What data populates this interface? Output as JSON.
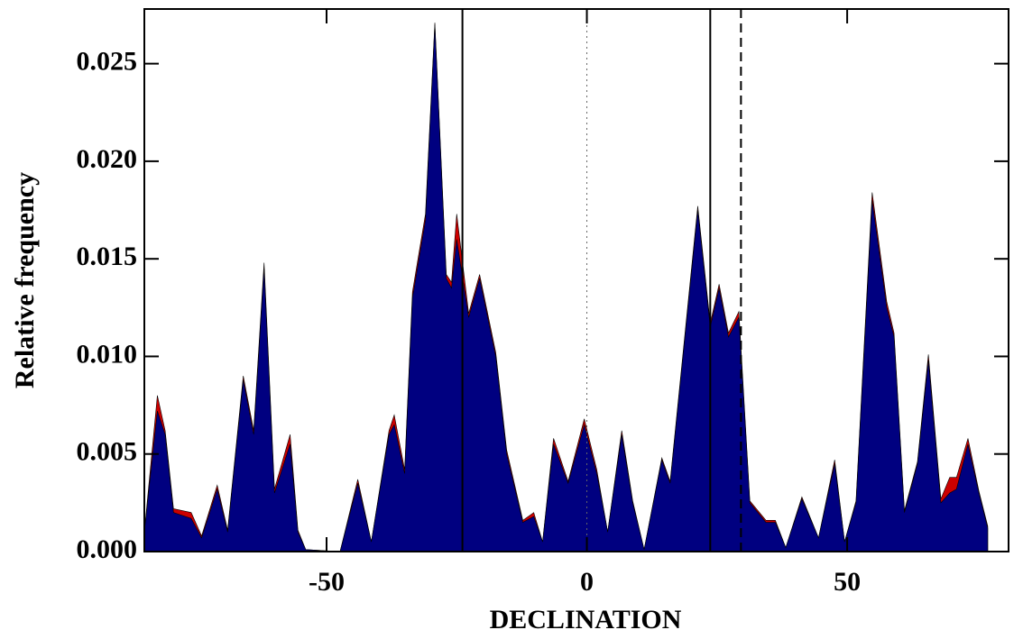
{
  "chart_data": {
    "type": "area",
    "xlabel": "DECLINATION",
    "ylabel": "Relative frequency",
    "x": [
      -85,
      -82.5,
      -81,
      -79.4,
      -76,
      -74,
      -71,
      -69,
      -66,
      -64,
      -62,
      -60,
      -57,
      -55.5,
      -54,
      -47.4,
      -44,
      -41.4,
      -38,
      -37,
      -35,
      -33.5,
      -31,
      -29.2,
      -27,
      -26,
      -25,
      -22.7,
      -20.6,
      -17.5,
      -15.4,
      -12.3,
      -10.2,
      -8.5,
      -6.4,
      -3.6,
      -0.5,
      1.9,
      4,
      6.7,
      8.8,
      11,
      14.4,
      16,
      21.3,
      23.7,
      25.4,
      27.2,
      29.2,
      31.3,
      34.4,
      36.2,
      38.2,
      41.3,
      44.5,
      47.6,
      49.5,
      51.7,
      54.8,
      57.6,
      59,
      61,
      63.5,
      65.6,
      68,
      69.7,
      71,
      73.2,
      75.3,
      77
    ],
    "series": [
      {
        "color": "#cc0000",
        "values": [
          0.001,
          0.008,
          0.0062,
          0.0022,
          0.002,
          0.0008,
          0.0034,
          0.0011,
          0.009,
          0.0062,
          0.0148,
          0.0032,
          0.006,
          0.0011,
          0.0001,
          0,
          0.0037,
          0.0005,
          0.0062,
          0.007,
          0.0042,
          0.0133,
          0.0173,
          0.0271,
          0.0142,
          0.0138,
          0.0173,
          0.0122,
          0.0142,
          0.0102,
          0.0052,
          0.0016,
          0.002,
          0.0005,
          0.0058,
          0.0036,
          0.0068,
          0.0042,
          0.001,
          0.0062,
          0.0026,
          0.0001,
          0.0048,
          0.0036,
          0.0177,
          0.0117,
          0.0137,
          0.0112,
          0.0123,
          0.0026,
          0.0016,
          0.0016,
          0.0002,
          0.0028,
          0.0007,
          0.0047,
          0.0005,
          0.0026,
          0.0184,
          0.0128,
          0.0112,
          0.0021,
          0.0046,
          0.0101,
          0.0027,
          0.0038,
          0.0038,
          0.0058,
          0.0031,
          0.0013
        ]
      },
      {
        "color": "#000080",
        "values": [
          0.001,
          0.0072,
          0.006,
          0.002,
          0.0017,
          0.0007,
          0.0032,
          0.001,
          0.0088,
          0.006,
          0.0145,
          0.003,
          0.0055,
          0.001,
          0.0001,
          0,
          0.0035,
          0.0005,
          0.006,
          0.0065,
          0.004,
          0.013,
          0.017,
          0.027,
          0.014,
          0.0135,
          0.016,
          0.012,
          0.014,
          0.01,
          0.005,
          0.0015,
          0.0018,
          0.0005,
          0.0055,
          0.0035,
          0.0065,
          0.004,
          0.001,
          0.006,
          0.0025,
          0.0001,
          0.0047,
          0.0035,
          0.0175,
          0.0115,
          0.0135,
          0.011,
          0.012,
          0.0025,
          0.0015,
          0.0015,
          0.0002,
          0.0027,
          0.0007,
          0.0045,
          0.0005,
          0.0025,
          0.018,
          0.0125,
          0.011,
          0.002,
          0.0045,
          0.0098,
          0.0025,
          0.003,
          0.0032,
          0.0055,
          0.003,
          0.0012
        ]
      }
    ],
    "vlines": [
      {
        "x": -23.9,
        "style": "solid"
      },
      {
        "x": 0,
        "style": "dotted"
      },
      {
        "x": 23.7,
        "style": "solid"
      },
      {
        "x": 29.6,
        "style": "dashed"
      }
    ],
    "xlim": [
      -85,
      81
    ],
    "xticks": [
      -50,
      0,
      50
    ],
    "ylim": [
      0,
      0.0278
    ],
    "yticks": [
      {
        "value": 0,
        "label": "0.000"
      },
      {
        "value": 0.005,
        "label": "0.005"
      },
      {
        "value": 0.01,
        "label": "0.010"
      },
      {
        "value": 0.015,
        "label": "0.015"
      },
      {
        "value": 0.02,
        "label": "0.020"
      },
      {
        "value": 0.025,
        "label": "0.025"
      }
    ],
    "grid": false
  }
}
